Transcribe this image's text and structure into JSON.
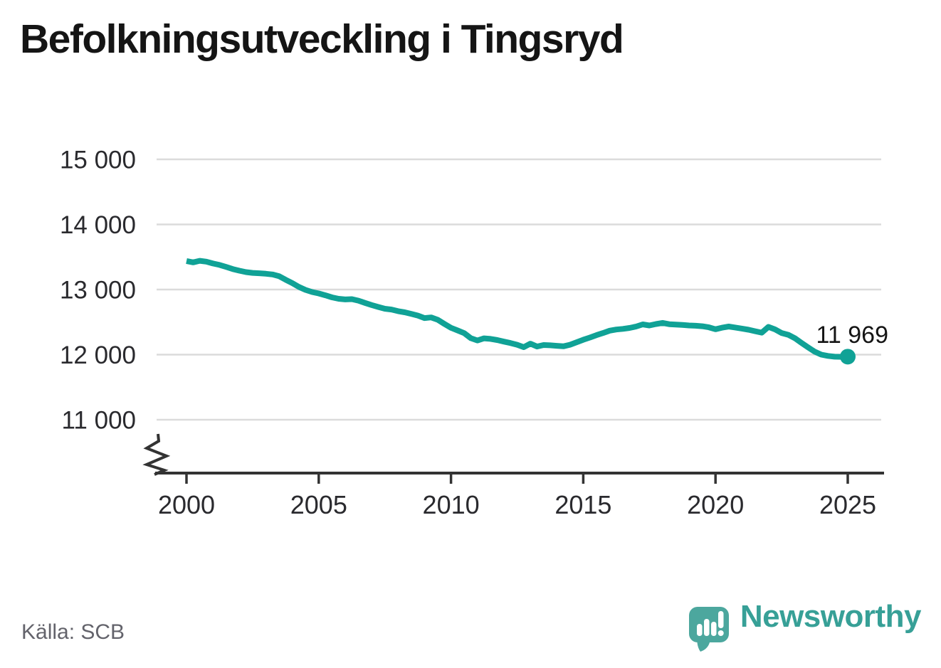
{
  "page": {
    "title": "Befolkningsutveckling i Tingsryd",
    "source": "Källa: SCB"
  },
  "branding": {
    "name": "Newsworthy",
    "icon": "newsworthy-speech-bubble-chart-icon"
  },
  "colors": {
    "line": "#10a296",
    "grid": "#dbdbdb",
    "axis": "#333333",
    "tick_label": "#2a2a2e",
    "title": "#151515",
    "source": "#63636b",
    "annotation": "#151515",
    "brand_text": "#37a097",
    "brand_mark": "#4ca79e"
  },
  "chart_data": {
    "type": "line",
    "title": "Befolkningsutveckling i Tingsryd",
    "xlabel": "",
    "ylabel": "",
    "grid": "horizontal",
    "legend": "none",
    "axis_break": true,
    "x_range_visible": [
      1998.9,
      2026.3
    ],
    "y_ticks": [
      {
        "value": 15000,
        "label": "15 000"
      },
      {
        "value": 14000,
        "label": "14 000"
      },
      {
        "value": 13000,
        "label": "13 000"
      },
      {
        "value": 12000,
        "label": "12 000"
      },
      {
        "value": 11000,
        "label": "11 000"
      }
    ],
    "x_ticks": [
      {
        "value": 2000,
        "label": "2000"
      },
      {
        "value": 2005,
        "label": "2005"
      },
      {
        "value": 2010,
        "label": "2010"
      },
      {
        "value": 2015,
        "label": "2015"
      },
      {
        "value": 2020,
        "label": "2020"
      },
      {
        "value": 2025,
        "label": "2025"
      }
    ],
    "annotation": {
      "x": 2025.0,
      "value": 11969,
      "label": "11 969"
    },
    "x": [
      2000.0,
      2000.25,
      2000.5,
      2000.75,
      2001.0,
      2001.25,
      2001.5,
      2001.75,
      2002.0,
      2002.25,
      2002.5,
      2002.75,
      2003.0,
      2003.25,
      2003.5,
      2003.75,
      2004.0,
      2004.25,
      2004.5,
      2004.75,
      2005.0,
      2005.25,
      2005.5,
      2005.75,
      2006.0,
      2006.25,
      2006.5,
      2006.75,
      2007.0,
      2007.25,
      2007.5,
      2007.75,
      2008.0,
      2008.25,
      2008.5,
      2008.75,
      2009.0,
      2009.25,
      2009.5,
      2009.75,
      2010.0,
      2010.25,
      2010.5,
      2010.75,
      2011.0,
      2011.25,
      2011.5,
      2011.75,
      2012.0,
      2012.25,
      2012.5,
      2012.75,
      2013.0,
      2013.25,
      2013.5,
      2013.75,
      2014.0,
      2014.25,
      2014.5,
      2014.75,
      2015.0,
      2015.25,
      2015.5,
      2015.75,
      2016.0,
      2016.25,
      2016.5,
      2016.75,
      2017.0,
      2017.25,
      2017.5,
      2017.75,
      2018.0,
      2018.25,
      2018.5,
      2018.75,
      2019.0,
      2019.25,
      2019.5,
      2019.75,
      2020.0,
      2020.25,
      2020.5,
      2020.75,
      2021.0,
      2021.25,
      2021.5,
      2021.75,
      2022.0,
      2022.25,
      2022.5,
      2022.75,
      2023.0,
      2023.25,
      2023.5,
      2023.75,
      2024.0,
      2024.25,
      2024.5,
      2024.75,
      2025.0
    ],
    "values": [
      13438,
      13417,
      13442,
      13428,
      13400,
      13378,
      13348,
      13315,
      13290,
      13268,
      13256,
      13250,
      13243,
      13232,
      13205,
      13150,
      13100,
      13040,
      12995,
      12962,
      12940,
      12912,
      12880,
      12858,
      12848,
      12852,
      12830,
      12795,
      12762,
      12732,
      12705,
      12693,
      12668,
      12650,
      12625,
      12600,
      12562,
      12572,
      12535,
      12472,
      12412,
      12372,
      12330,
      12252,
      12218,
      12250,
      12242,
      12224,
      12200,
      12178,
      12152,
      12115,
      12168,
      12125,
      12148,
      12143,
      12135,
      12128,
      12152,
      12190,
      12228,
      12262,
      12300,
      12332,
      12368,
      12386,
      12396,
      12410,
      12432,
      12464,
      12448,
      12470,
      12487,
      12468,
      12462,
      12456,
      12448,
      12444,
      12436,
      12420,
      12390,
      12414,
      12432,
      12416,
      12400,
      12382,
      12360,
      12338,
      12426,
      12388,
      12332,
      12305,
      12252,
      12180,
      12112,
      12046,
      12000,
      11980,
      11968,
      11966,
      11969
    ]
  }
}
